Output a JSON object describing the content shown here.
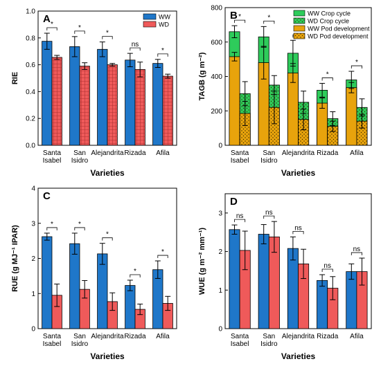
{
  "colors": {
    "ww": "#1f77c9",
    "wd": "#ef5a5a",
    "ww_crop": "#2ecc5b",
    "wd_crop": "#2ecc5b",
    "ww_pod": "#e8a30c",
    "wd_pod": "#e8a30c"
  },
  "chart_data": [
    {
      "type": "bar",
      "panel": "A",
      "ylabel": "RIE",
      "xlabel": "Varieties",
      "categories": [
        "Santa\nIsabel",
        "San\nIsidro",
        "Alejandrita",
        "Rizada",
        "Afila"
      ],
      "ylim": [
        0.0,
        1.0
      ],
      "yticks": [
        "0.0",
        "0.2",
        "0.4",
        "0.6",
        "0.8",
        "1.0"
      ],
      "legend": "top-right",
      "series": [
        {
          "name": "WW",
          "values": [
            0.775,
            0.735,
            0.715,
            0.635,
            0.61
          ],
          "err": [
            0.06,
            0.075,
            0.055,
            0.05,
            0.03
          ]
        },
        {
          "name": "WD",
          "values": [
            0.655,
            0.59,
            0.6,
            0.565,
            0.515
          ],
          "err": [
            0.015,
            0.025,
            0.01,
            0.055,
            0.015
          ]
        }
      ],
      "significance": [
        "*",
        "*",
        "*",
        "ns",
        "*"
      ]
    },
    {
      "type": "bar",
      "panel": "B",
      "ylabel": "TAGB (g m⁻²)",
      "xlabel": "Varieties",
      "categories": [
        "Santa\nIsabel",
        "San\nIsidro",
        "Alejandrita",
        "Rizada",
        "Afila"
      ],
      "ylim": [
        0,
        800
      ],
      "yticks": [
        "0",
        "200",
        "400",
        "600",
        "800"
      ],
      "legend": "top-right",
      "series": [
        {
          "name": "WW Crop cycle",
          "values": [
            660,
            630,
            535,
            320,
            380
          ],
          "err": [
            35,
            60,
            75,
            40,
            50
          ]
        },
        {
          "name": "WD Crop cycle",
          "values": [
            300,
            350,
            250,
            155,
            220
          ],
          "err": [
            70,
            55,
            65,
            40,
            50
          ]
        },
        {
          "name": "WW Pod development",
          "values": [
            515,
            480,
            420,
            245,
            335
          ],
          "err": [
            25,
            95,
            55,
            30,
            30
          ]
        },
        {
          "name": "WD Pod development",
          "values": [
            185,
            220,
            150,
            110,
            140
          ],
          "err": [
            70,
            95,
            60,
            30,
            40
          ]
        }
      ],
      "significance": [
        "*",
        "*",
        "*",
        "*",
        "*"
      ]
    },
    {
      "type": "bar",
      "panel": "C",
      "ylabel": "RUE (g MJ⁻¹ IPAR)",
      "xlabel": "Varieties",
      "categories": [
        "Santa\nIsabel",
        "San\nIsidro",
        "Alejandrita",
        "Rizada",
        "Afila"
      ],
      "ylim": [
        0,
        4
      ],
      "yticks": [
        "0",
        "1",
        "2",
        "3",
        "4"
      ],
      "series": [
        {
          "name": "WW",
          "values": [
            2.62,
            2.42,
            2.13,
            1.23,
            1.68
          ],
          "err": [
            0.1,
            0.3,
            0.3,
            0.15,
            0.25
          ]
        },
        {
          "name": "WD",
          "values": [
            0.95,
            1.12,
            0.77,
            0.55,
            0.72
          ],
          "err": [
            0.32,
            0.25,
            0.25,
            0.15,
            0.2
          ]
        }
      ],
      "significance": [
        "*",
        "*",
        "*",
        "*",
        "*"
      ]
    },
    {
      "type": "bar",
      "panel": "D",
      "ylabel": "WUE (g m⁻² mm⁻¹)",
      "xlabel": "Varieties",
      "categories": [
        "Santa\nIsabel",
        "San\nIsidro",
        "Alejandrita",
        "Rizada",
        "Afila"
      ],
      "ylim": [
        0,
        3.5
      ],
      "yticks": [
        "0",
        "1",
        "2",
        "3"
      ],
      "series": [
        {
          "name": "WW",
          "values": [
            2.57,
            2.45,
            2.08,
            1.25,
            1.48
          ],
          "err": [
            0.12,
            0.25,
            0.3,
            0.15,
            0.2
          ]
        },
        {
          "name": "WD",
          "values": [
            2.03,
            2.38,
            1.68,
            1.05,
            1.48
          ],
          "err": [
            0.5,
            0.4,
            0.38,
            0.3,
            0.35
          ]
        }
      ],
      "significance": [
        "ns",
        "ns",
        "ns",
        "ns",
        "ns"
      ]
    }
  ]
}
